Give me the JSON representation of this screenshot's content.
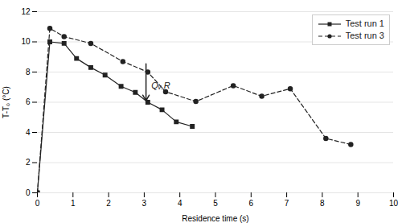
{
  "chart_data": {
    "type": "line",
    "series": [
      {
        "name": "Test run 1",
        "color": "#222222",
        "marker": "square",
        "line_style": "solid",
        "x": [
          0.0,
          0.35,
          0.75,
          1.1,
          1.5,
          1.9,
          2.35,
          2.75,
          3.1,
          3.5,
          3.9,
          4.35
        ],
        "values": [
          0.0,
          10.0,
          9.9,
          8.9,
          8.3,
          7.8,
          7.05,
          6.65,
          6.0,
          5.5,
          4.7,
          4.4
        ]
      },
      {
        "name": "Test run 3",
        "color": "#222222",
        "marker": "circle",
        "line_style": "dashed",
        "x": [
          0.0,
          0.35,
          0.75,
          1.5,
          2.4,
          3.1,
          3.6,
          4.45,
          5.5,
          6.3,
          7.1,
          8.1,
          8.8
        ],
        "values": [
          0.0,
          10.9,
          10.35,
          9.9,
          8.7,
          8.0,
          6.7,
          6.05,
          7.1,
          6.4,
          6.9,
          3.6,
          3.2
        ]
      }
    ],
    "xlabel": "Residence time (s)",
    "ylabel": "T-T₀ (°C)",
    "xlim": [
      0,
      10
    ],
    "ylim": [
      0,
      12
    ],
    "xticks": [
      0,
      1,
      2,
      3,
      4,
      5,
      6,
      7,
      8,
      9,
      10
    ],
    "yticks": [
      0,
      2,
      4,
      6,
      8,
      10,
      12
    ],
    "grid": "y",
    "legend": "upper right",
    "annotations": [
      {
        "text": "Qᵥ,R",
        "x": 3.2,
        "y": 6.9,
        "color": "#222222"
      }
    ],
    "arrows": [
      {
        "x_start": 3.05,
        "y_start": 8.55,
        "x_end": 3.05,
        "y_end": 6.1,
        "color": "#222222"
      }
    ]
  }
}
